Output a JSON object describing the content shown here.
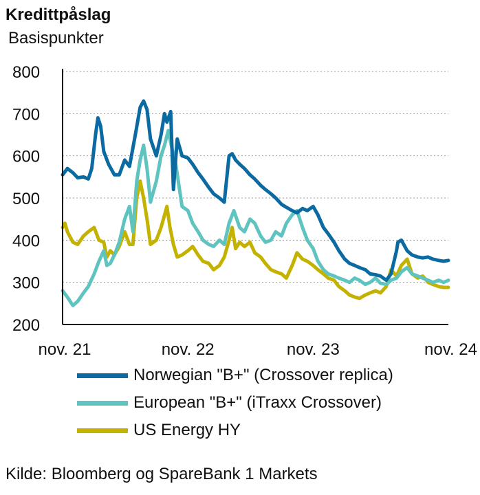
{
  "header": {
    "title": "Kredittpåslag",
    "subtitle": "Basispunkter"
  },
  "source": "Kilde: Bloomberg og SpareBank 1 Markets",
  "chart_data": {
    "type": "line",
    "ylabel": "Basispunkter",
    "ylim": [
      200,
      800
    ],
    "yticks": [
      200,
      300,
      400,
      500,
      600,
      700,
      800
    ],
    "xlim": [
      "2021-11-01",
      "2024-11-29"
    ],
    "xticks": [
      {
        "date": "2021-11-01",
        "label": "nov. 21"
      },
      {
        "date": "2022-11-01",
        "label": "nov. 22"
      },
      {
        "date": "2023-11-01",
        "label": "nov. 23"
      },
      {
        "date": "2024-11-01",
        "label": "nov. 24"
      }
    ],
    "grid": "horizontal-dotted",
    "legend_position": "bottom",
    "series": [
      {
        "name": "Norwegian \"B+\" (Crossover replica)",
        "color": "#0a6aa1",
        "points": [
          [
            "2021-11-01",
            555
          ],
          [
            "2021-11-15",
            570
          ],
          [
            "2021-12-01",
            560
          ],
          [
            "2021-12-15",
            548
          ],
          [
            "2022-01-01",
            550
          ],
          [
            "2022-01-15",
            545
          ],
          [
            "2022-01-25",
            570
          ],
          [
            "2022-02-05",
            650
          ],
          [
            "2022-02-12",
            690
          ],
          [
            "2022-02-20",
            670
          ],
          [
            "2022-03-01",
            610
          ],
          [
            "2022-03-15",
            580
          ],
          [
            "2022-04-01",
            555
          ],
          [
            "2022-04-15",
            555
          ],
          [
            "2022-05-01",
            590
          ],
          [
            "2022-05-15",
            575
          ],
          [
            "2022-06-01",
            650
          ],
          [
            "2022-06-15",
            715
          ],
          [
            "2022-06-25",
            730
          ],
          [
            "2022-07-05",
            710
          ],
          [
            "2022-07-15",
            640
          ],
          [
            "2022-08-01",
            600
          ],
          [
            "2022-08-15",
            650
          ],
          [
            "2022-08-25",
            700
          ],
          [
            "2022-09-01",
            680
          ],
          [
            "2022-09-12",
            705
          ],
          [
            "2022-09-20",
            520
          ],
          [
            "2022-10-01",
            640
          ],
          [
            "2022-10-15",
            600
          ],
          [
            "2022-11-01",
            595
          ],
          [
            "2022-11-15",
            580
          ],
          [
            "2022-12-01",
            560
          ],
          [
            "2022-12-15",
            545
          ],
          [
            "2023-01-01",
            525
          ],
          [
            "2023-01-15",
            510
          ],
          [
            "2023-02-01",
            500
          ],
          [
            "2023-02-15",
            490
          ],
          [
            "2023-03-01",
            600
          ],
          [
            "2023-03-10",
            605
          ],
          [
            "2023-03-20",
            590
          ],
          [
            "2023-04-01",
            580
          ],
          [
            "2023-04-15",
            570
          ],
          [
            "2023-05-01",
            555
          ],
          [
            "2023-05-15",
            545
          ],
          [
            "2023-06-01",
            530
          ],
          [
            "2023-06-15",
            520
          ],
          [
            "2023-07-01",
            510
          ],
          [
            "2023-07-15",
            500
          ],
          [
            "2023-08-01",
            485
          ],
          [
            "2023-08-15",
            478
          ],
          [
            "2023-09-01",
            470
          ],
          [
            "2023-09-15",
            465
          ],
          [
            "2023-10-01",
            475
          ],
          [
            "2023-10-15",
            470
          ],
          [
            "2023-11-01",
            480
          ],
          [
            "2023-11-15",
            460
          ],
          [
            "2023-12-01",
            430
          ],
          [
            "2023-12-15",
            415
          ],
          [
            "2024-01-01",
            395
          ],
          [
            "2024-01-15",
            375
          ],
          [
            "2024-02-01",
            355
          ],
          [
            "2024-02-15",
            345
          ],
          [
            "2024-03-01",
            340
          ],
          [
            "2024-03-15",
            335
          ],
          [
            "2024-04-01",
            330
          ],
          [
            "2024-04-15",
            320
          ],
          [
            "2024-05-01",
            318
          ],
          [
            "2024-05-15",
            315
          ],
          [
            "2024-06-01",
            305
          ],
          [
            "2024-06-15",
            320
          ],
          [
            "2024-07-01",
            375
          ],
          [
            "2024-07-05",
            395
          ],
          [
            "2024-07-15",
            400
          ],
          [
            "2024-08-01",
            375
          ],
          [
            "2024-08-15",
            365
          ],
          [
            "2024-09-01",
            360
          ],
          [
            "2024-09-15",
            358
          ],
          [
            "2024-10-01",
            360
          ],
          [
            "2024-10-15",
            355
          ],
          [
            "2024-11-01",
            352
          ],
          [
            "2024-11-15",
            350
          ],
          [
            "2024-11-29",
            352
          ]
        ]
      },
      {
        "name": "European \"B+\" (iTraxx Crossover)",
        "color": "#5fc4c0",
        "points": [
          [
            "2021-11-01",
            280
          ],
          [
            "2021-11-15",
            265
          ],
          [
            "2021-12-01",
            245
          ],
          [
            "2021-12-15",
            255
          ],
          [
            "2022-01-01",
            275
          ],
          [
            "2022-01-15",
            290
          ],
          [
            "2022-02-01",
            320
          ],
          [
            "2022-02-15",
            350
          ],
          [
            "2022-03-01",
            375
          ],
          [
            "2022-03-10",
            340
          ],
          [
            "2022-03-20",
            345
          ],
          [
            "2022-04-01",
            365
          ],
          [
            "2022-04-15",
            395
          ],
          [
            "2022-05-01",
            450
          ],
          [
            "2022-05-15",
            480
          ],
          [
            "2022-05-25",
            420
          ],
          [
            "2022-06-05",
            540
          ],
          [
            "2022-06-15",
            590
          ],
          [
            "2022-06-25",
            625
          ],
          [
            "2022-07-05",
            570
          ],
          [
            "2022-07-15",
            490
          ],
          [
            "2022-08-01",
            540
          ],
          [
            "2022-08-15",
            600
          ],
          [
            "2022-08-25",
            625
          ],
          [
            "2022-09-05",
            660
          ],
          [
            "2022-09-15",
            620
          ],
          [
            "2022-09-25",
            590
          ],
          [
            "2022-10-05",
            535
          ],
          [
            "2022-10-15",
            480
          ],
          [
            "2022-11-01",
            470
          ],
          [
            "2022-11-15",
            440
          ],
          [
            "2022-12-01",
            420
          ],
          [
            "2022-12-15",
            400
          ],
          [
            "2023-01-01",
            390
          ],
          [
            "2023-01-15",
            385
          ],
          [
            "2023-02-01",
            400
          ],
          [
            "2023-02-15",
            390
          ],
          [
            "2023-03-01",
            440
          ],
          [
            "2023-03-15",
            470
          ],
          [
            "2023-04-01",
            430
          ],
          [
            "2023-04-15",
            420
          ],
          [
            "2023-05-01",
            450
          ],
          [
            "2023-05-15",
            440
          ],
          [
            "2023-06-01",
            410
          ],
          [
            "2023-06-15",
            395
          ],
          [
            "2023-07-01",
            400
          ],
          [
            "2023-07-15",
            420
          ],
          [
            "2023-08-01",
            410
          ],
          [
            "2023-08-15",
            440
          ],
          [
            "2023-09-01",
            460
          ],
          [
            "2023-09-15",
            470
          ],
          [
            "2023-10-01",
            430
          ],
          [
            "2023-10-15",
            400
          ],
          [
            "2023-11-01",
            380
          ],
          [
            "2023-11-15",
            350
          ],
          [
            "2023-12-01",
            330
          ],
          [
            "2023-12-15",
            320
          ],
          [
            "2024-01-01",
            315
          ],
          [
            "2024-01-15",
            310
          ],
          [
            "2024-02-01",
            305
          ],
          [
            "2024-02-15",
            300
          ],
          [
            "2024-03-01",
            310
          ],
          [
            "2024-03-15",
            305
          ],
          [
            "2024-04-01",
            295
          ],
          [
            "2024-04-15",
            300
          ],
          [
            "2024-05-01",
            310
          ],
          [
            "2024-05-15",
            298
          ],
          [
            "2024-06-01",
            295
          ],
          [
            "2024-06-15",
            305
          ],
          [
            "2024-07-01",
            310
          ],
          [
            "2024-07-15",
            325
          ],
          [
            "2024-08-01",
            335
          ],
          [
            "2024-08-15",
            320
          ],
          [
            "2024-09-01",
            315
          ],
          [
            "2024-09-15",
            310
          ],
          [
            "2024-10-01",
            305
          ],
          [
            "2024-10-15",
            300
          ],
          [
            "2024-11-01",
            305
          ],
          [
            "2024-11-15",
            300
          ],
          [
            "2024-11-29",
            305
          ]
        ]
      },
      {
        "name": "US Energy HY",
        "color": "#c4b200",
        "points": [
          [
            "2021-11-01",
            430
          ],
          [
            "2021-11-08",
            440
          ],
          [
            "2021-11-15",
            420
          ],
          [
            "2021-12-01",
            395
          ],
          [
            "2021-12-15",
            390
          ],
          [
            "2022-01-01",
            410
          ],
          [
            "2022-01-15",
            420
          ],
          [
            "2022-02-01",
            430
          ],
          [
            "2022-02-15",
            400
          ],
          [
            "2022-03-01",
            395
          ],
          [
            "2022-03-10",
            360
          ],
          [
            "2022-03-20",
            375
          ],
          [
            "2022-04-01",
            365
          ],
          [
            "2022-04-15",
            385
          ],
          [
            "2022-05-01",
            420
          ],
          [
            "2022-05-15",
            390
          ],
          [
            "2022-05-25",
            390
          ],
          [
            "2022-06-05",
            500
          ],
          [
            "2022-06-15",
            540
          ],
          [
            "2022-06-25",
            500
          ],
          [
            "2022-07-05",
            450
          ],
          [
            "2022-07-15",
            390
          ],
          [
            "2022-08-01",
            400
          ],
          [
            "2022-08-15",
            430
          ],
          [
            "2022-09-01",
            480
          ],
          [
            "2022-09-10",
            430
          ],
          [
            "2022-09-20",
            390
          ],
          [
            "2022-10-01",
            360
          ],
          [
            "2022-10-15",
            365
          ],
          [
            "2022-11-01",
            375
          ],
          [
            "2022-11-15",
            385
          ],
          [
            "2022-12-01",
            365
          ],
          [
            "2022-12-15",
            350
          ],
          [
            "2023-01-01",
            345
          ],
          [
            "2023-01-15",
            330
          ],
          [
            "2023-02-01",
            340
          ],
          [
            "2023-02-15",
            360
          ],
          [
            "2023-03-01",
            400
          ],
          [
            "2023-03-10",
            430
          ],
          [
            "2023-03-20",
            380
          ],
          [
            "2023-04-01",
            395
          ],
          [
            "2023-04-15",
            385
          ],
          [
            "2023-05-01",
            395
          ],
          [
            "2023-05-15",
            370
          ],
          [
            "2023-06-01",
            360
          ],
          [
            "2023-06-15",
            345
          ],
          [
            "2023-07-01",
            330
          ],
          [
            "2023-07-15",
            325
          ],
          [
            "2023-08-01",
            320
          ],
          [
            "2023-08-15",
            310
          ],
          [
            "2023-09-01",
            340
          ],
          [
            "2023-09-15",
            370
          ],
          [
            "2023-10-01",
            355
          ],
          [
            "2023-10-15",
            350
          ],
          [
            "2023-11-01",
            340
          ],
          [
            "2023-11-15",
            330
          ],
          [
            "2023-12-01",
            320
          ],
          [
            "2023-12-15",
            310
          ],
          [
            "2024-01-01",
            305
          ],
          [
            "2024-01-15",
            290
          ],
          [
            "2024-02-01",
            280
          ],
          [
            "2024-02-15",
            270
          ],
          [
            "2024-03-01",
            265
          ],
          [
            "2024-03-15",
            262
          ],
          [
            "2024-04-01",
            270
          ],
          [
            "2024-04-15",
            275
          ],
          [
            "2024-05-01",
            280
          ],
          [
            "2024-05-15",
            275
          ],
          [
            "2024-06-01",
            290
          ],
          [
            "2024-06-15",
            330
          ],
          [
            "2024-07-01",
            315
          ],
          [
            "2024-07-15",
            340
          ],
          [
            "2024-08-01",
            355
          ],
          [
            "2024-08-15",
            320
          ],
          [
            "2024-09-01",
            310
          ],
          [
            "2024-09-15",
            315
          ],
          [
            "2024-10-01",
            300
          ],
          [
            "2024-10-15",
            295
          ],
          [
            "2024-11-01",
            290
          ],
          [
            "2024-11-15",
            288
          ],
          [
            "2024-11-29",
            288
          ]
        ]
      }
    ]
  }
}
